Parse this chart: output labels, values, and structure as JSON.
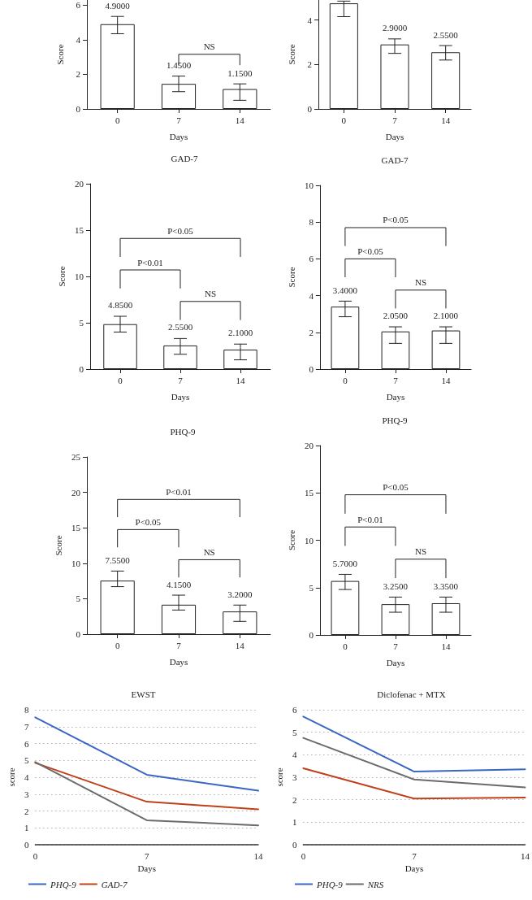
{
  "chart_data": [
    {
      "type": "bar",
      "xlabel": "Days",
      "ylabel": "Score",
      "categories": [
        "0",
        "7",
        "14"
      ],
      "values": [
        4.9,
        1.45,
        1.15
      ],
      "color": "#ffffff",
      "errors": [
        [
          4.35,
          5.35
        ],
        [
          1.0,
          1.9
        ],
        [
          0.5,
          1.45
        ]
      ],
      "value_labels": [
        "4.9000",
        "1.4500",
        "1.1500"
      ],
      "ylim": [
        0,
        6.3
      ],
      "yticks": [
        0,
        2,
        4,
        6
      ],
      "annotations": [
        "NS"
      ]
    },
    {
      "type": "bar",
      "xlabel": "Days",
      "ylabel": "Score",
      "categories": [
        "0",
        "7",
        "14"
      ],
      "values": [
        4.75,
        2.9,
        2.55
      ],
      "color": "#ffffff",
      "errors": [
        [
          4.15,
          4.85
        ],
        [
          2.5,
          3.15
        ],
        [
          2.2,
          2.85
        ]
      ],
      "value_labels": [
        null,
        "2.9000",
        "2.5500"
      ],
      "ylim": [
        0,
        4.9
      ],
      "yticks": [
        0,
        2,
        4
      ]
    },
    {
      "type": "bar",
      "title": "GAD-7",
      "xlabel": "Days",
      "ylabel": "Score",
      "categories": [
        "0",
        "7",
        "14"
      ],
      "values": [
        4.85,
        2.55,
        2.1
      ],
      "color": "#ffffff",
      "errors": [
        [
          4.0,
          5.7
        ],
        [
          1.6,
          3.3
        ],
        [
          1.0,
          2.7
        ]
      ],
      "value_labels": [
        "4.8500",
        "2.5500",
        "2.1000"
      ],
      "ylim": [
        0,
        20
      ],
      "yticks": [
        0,
        5,
        10,
        15,
        20
      ],
      "annotations": [
        "P<0.05",
        "P<0.01",
        "NS"
      ]
    },
    {
      "type": "bar",
      "title": "GAD-7",
      "xlabel": "Days",
      "ylabel": "Score",
      "categories": [
        "0",
        "7",
        "14"
      ],
      "values": [
        3.4,
        2.05,
        2.1
      ],
      "color": "#ffffff",
      "errors": [
        [
          2.85,
          3.7
        ],
        [
          1.4,
          2.3
        ],
        [
          1.4,
          2.3
        ]
      ],
      "value_labels": [
        "3.4000",
        "2.0500",
        "2.1000"
      ],
      "ylim": [
        0,
        10
      ],
      "yticks": [
        0,
        2,
        4,
        6,
        8,
        10
      ],
      "annotations": [
        "P<0.05",
        "P<0.05",
        "NS"
      ]
    },
    {
      "type": "bar",
      "title": "PHQ-9",
      "xlabel": "Days",
      "ylabel": "Score",
      "categories": [
        "0",
        "7",
        "14"
      ],
      "values": [
        7.55,
        4.15,
        3.2
      ],
      "color": "#ffffff",
      "errors": [
        [
          6.7,
          8.9
        ],
        [
          3.4,
          5.5
        ],
        [
          1.8,
          4.1
        ]
      ],
      "value_labels": [
        "7.5500",
        "4.1500",
        "3.2000"
      ],
      "ylim": [
        0,
        25
      ],
      "yticks": [
        0,
        5,
        10,
        15,
        20,
        25
      ],
      "annotations": [
        "P<0.01",
        "P<0.05",
        "NS"
      ]
    },
    {
      "type": "bar",
      "title": "PHQ-9",
      "xlabel": "Days",
      "ylabel": "Score",
      "categories": [
        "0",
        "7",
        "14"
      ],
      "values": [
        5.7,
        3.25,
        3.35
      ],
      "color": "#ffffff",
      "errors": [
        [
          4.8,
          6.4
        ],
        [
          2.4,
          4.0
        ],
        [
          2.4,
          4.0
        ]
      ],
      "value_labels": [
        "5.7000",
        "3.2500",
        "3.3500"
      ],
      "ylim": [
        0,
        20
      ],
      "yticks": [
        0,
        5,
        10,
        15,
        20
      ],
      "annotations": [
        "P<0.05",
        "P<0.01",
        "NS"
      ]
    },
    {
      "type": "line",
      "title": "EWST",
      "xlabel": "Days",
      "ylabel": "score",
      "x": [
        0,
        7,
        14
      ],
      "xlim": [
        0,
        14
      ],
      "xticks": [
        0,
        7,
        14
      ],
      "ylim": [
        0,
        8
      ],
      "yticks": [
        0,
        1,
        2,
        3,
        4,
        5,
        6,
        7,
        8
      ],
      "grid": "y",
      "legend": "bottom",
      "marker": "none",
      "line_style": "solid",
      "series": [
        {
          "name": "PHQ-9",
          "color": "#3a66c4",
          "values": [
            7.55,
            4.15,
            3.2
          ]
        },
        {
          "name": "GAD-7",
          "color": "#c0401a",
          "values": [
            4.85,
            2.55,
            2.1
          ]
        },
        {
          "color": "#6b6b6b",
          "values": [
            4.9,
            1.45,
            1.15
          ]
        }
      ]
    },
    {
      "type": "line",
      "title": "Diclofenac + MTX",
      "xlabel": "Days",
      "ylabel": "score",
      "x": [
        0,
        7,
        14
      ],
      "xlim": [
        0,
        14
      ],
      "xticks": [
        0,
        7,
        14
      ],
      "ylim": [
        0,
        6
      ],
      "yticks": [
        0,
        1,
        2,
        3,
        4,
        5,
        6
      ],
      "grid": "y",
      "legend": "bottom",
      "marker": "none",
      "line_style": "solid",
      "series": [
        {
          "name": "PHQ-9",
          "color": "#3a66c4",
          "values": [
            5.7,
            3.25,
            3.35
          ]
        },
        {
          "name": "NRS",
          "color": "#6b6b6b",
          "values": [
            4.75,
            2.9,
            2.55
          ]
        },
        {
          "color": "#c0401a",
          "values": [
            3.4,
            2.05,
            2.1
          ]
        }
      ]
    }
  ]
}
